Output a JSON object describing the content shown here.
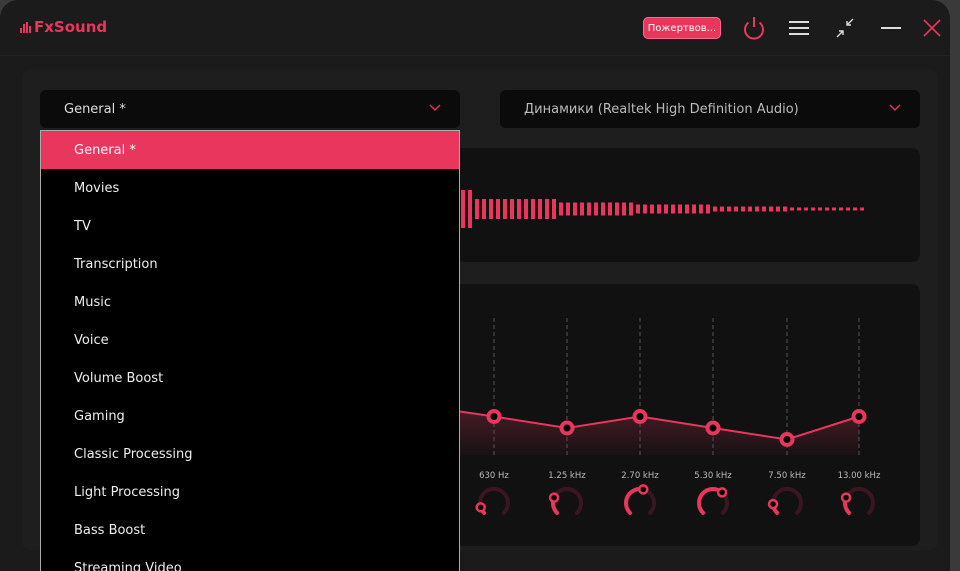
{
  "app": {
    "title": "FxSound",
    "accent": "#e8365d"
  },
  "titlebar": {
    "donate_label": "Пожертвов...",
    "icons": [
      "power-icon",
      "menu-icon",
      "minimize-to-compact-icon",
      "minimize-icon",
      "close-icon"
    ]
  },
  "preset": {
    "selected": "General *",
    "options": [
      "General *",
      "Movies",
      "TV",
      "Transcription",
      "Music",
      "Voice",
      "Volume Boost",
      "Gaming",
      "Classic Processing",
      "Light Processing",
      "Bass Boost",
      "Streaming Video"
    ]
  },
  "device": {
    "selected": "Динамики (Realtek High Definition Audio)"
  },
  "equalizer": {
    "bands": [
      {
        "freq": "630 Hz",
        "gain_level": 0.55,
        "knob": 0.1
      },
      {
        "freq": "1.25 kHz",
        "gain_level": 0.5,
        "knob": 0.25
      },
      {
        "freq": "2.70 kHz",
        "gain_level": 0.55,
        "knob": 0.55
      },
      {
        "freq": "5.30 kHz",
        "gain_level": 0.5,
        "knob": 0.65
      },
      {
        "freq": "7.50 kHz",
        "gain_level": 0.45,
        "knob": 0.15
      },
      {
        "freq": "13.00 kHz",
        "gain_level": 0.55,
        "knob": 0.25
      }
    ]
  }
}
